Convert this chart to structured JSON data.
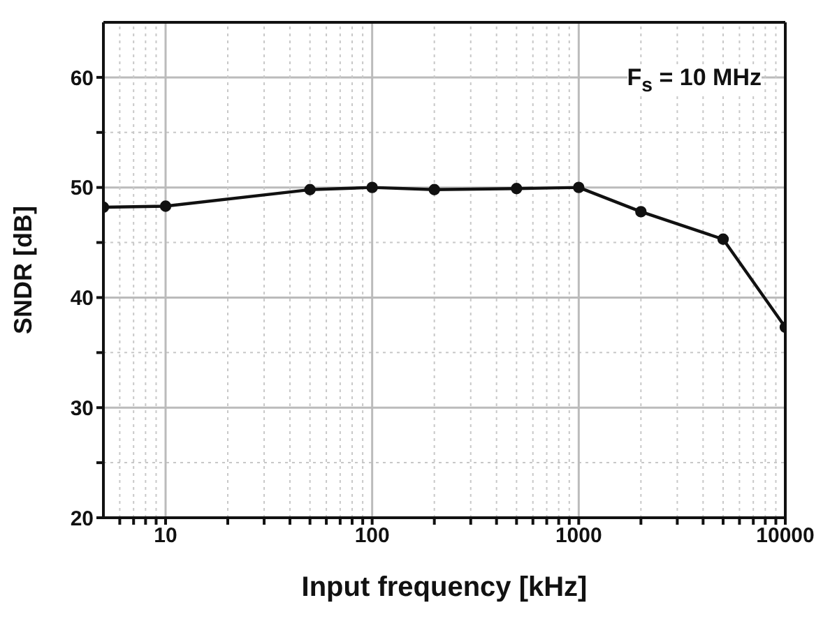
{
  "chart_data": {
    "type": "line",
    "xlabel": "Input frequency [kHz]",
    "ylabel": "SNDR [dB]",
    "annotations": [
      "F$_{s}$ = 10 MHz"
    ],
    "log": "x",
    "grid": true,
    "marker": "circle",
    "line_style": "solid",
    "x": [
      5,
      10,
      50,
      100,
      200,
      500,
      1000,
      2000,
      5000,
      10000
    ],
    "series": [
      {
        "color": "#111111",
        "values": [
          48.2,
          48.3,
          49.8,
          50.0,
          49.8,
          49.9,
          50.0,
          47.8,
          45.3,
          37.3
        ]
      }
    ],
    "xlim": [
      5,
      10000
    ],
    "xticks": [
      {
        "value": 6,
        "label": null
      },
      {
        "value": 7,
        "label": null
      },
      {
        "value": 8,
        "label": null
      },
      {
        "value": 9,
        "label": null
      },
      10,
      {
        "value": 20,
        "label": null
      },
      {
        "value": 30,
        "label": null
      },
      {
        "value": 40,
        "label": null
      },
      {
        "value": 50,
        "label": null
      },
      {
        "value": 60,
        "label": null
      },
      {
        "value": 70,
        "label": null
      },
      {
        "value": 80,
        "label": null
      },
      {
        "value": 90,
        "label": null
      },
      100,
      {
        "value": 200,
        "label": null
      },
      {
        "value": 300,
        "label": null
      },
      {
        "value": 400,
        "label": null
      },
      {
        "value": 500,
        "label": null
      },
      {
        "value": 600,
        "label": null
      },
      {
        "value": 700,
        "label": null
      },
      {
        "value": 800,
        "label": null
      },
      {
        "value": 900,
        "label": null
      },
      1000,
      {
        "value": 2000,
        "label": null
      },
      {
        "value": 3000,
        "label": null
      },
      {
        "value": 4000,
        "label": null
      },
      {
        "value": 5000,
        "label": null
      },
      {
        "value": 6000,
        "label": null
      },
      {
        "value": 7000,
        "label": null
      },
      {
        "value": 8000,
        "label": null
      },
      {
        "value": 9000,
        "label": null
      },
      10000
    ],
    "ylim": [
      20,
      65
    ],
    "yticks": [
      20,
      {
        "value": 25,
        "label": null
      },
      30,
      {
        "value": 35,
        "label": null
      },
      40,
      {
        "value": 45,
        "label": null
      },
      50,
      {
        "value": 55,
        "label": null
      },
      60
    ]
  }
}
